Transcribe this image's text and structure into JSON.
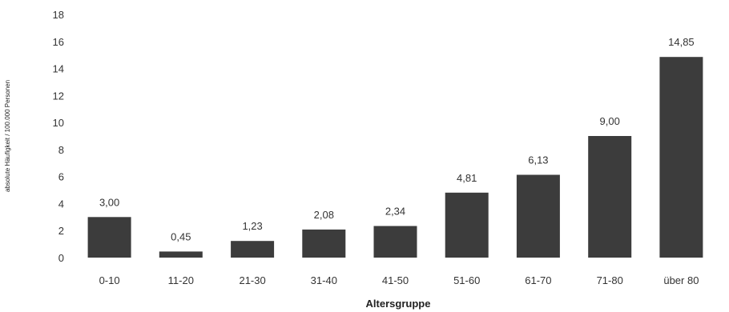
{
  "chart_data": {
    "type": "bar",
    "xlabel": "Altersgruppe",
    "ylabel": "absolute Häufigkeit / 100.000 Personen",
    "ylim": [
      0,
      18
    ],
    "yticks": [
      0,
      2,
      4,
      6,
      8,
      10,
      12,
      14,
      16,
      18
    ],
    "grid": false,
    "bar_color": "#3c3c3c",
    "categories": [
      "0-10",
      "11-20",
      "21-30",
      "31-40",
      "41-50",
      "51-60",
      "61-70",
      "71-80",
      "über 80"
    ],
    "values": [
      3.0,
      0.45,
      1.23,
      2.08,
      2.34,
      4.81,
      6.13,
      9.0,
      14.85
    ],
    "data_labels": [
      "3,00",
      "0,45",
      "1,23",
      "2,08",
      "2,34",
      "4,81",
      "6,13",
      "9,00",
      "14,85"
    ]
  }
}
